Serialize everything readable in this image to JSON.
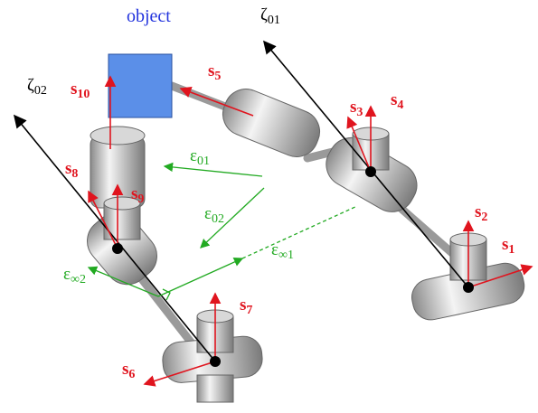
{
  "object_label": "object",
  "axes": [
    {
      "symbol": "ζ",
      "sub": "01"
    },
    {
      "symbol": "ζ",
      "sub": "02"
    }
  ],
  "screws": [
    {
      "symbol": "s",
      "sub": "1"
    },
    {
      "symbol": "s",
      "sub": "2"
    },
    {
      "symbol": "s",
      "sub": "3"
    },
    {
      "symbol": "s",
      "sub": "4"
    },
    {
      "symbol": "s",
      "sub": "5"
    },
    {
      "symbol": "s",
      "sub": "6"
    },
    {
      "symbol": "s",
      "sub": "7"
    },
    {
      "symbol": "s",
      "sub": "8"
    },
    {
      "symbol": "s",
      "sub": "9"
    },
    {
      "symbol": "s",
      "sub": "10"
    }
  ],
  "epsilons": [
    {
      "symbol": "ε",
      "sub": "01"
    },
    {
      "symbol": "ε",
      "sub": "02"
    },
    {
      "symbol": "ε",
      "sub": "∞1"
    },
    {
      "symbol": "ε",
      "sub": "∞2"
    }
  ]
}
